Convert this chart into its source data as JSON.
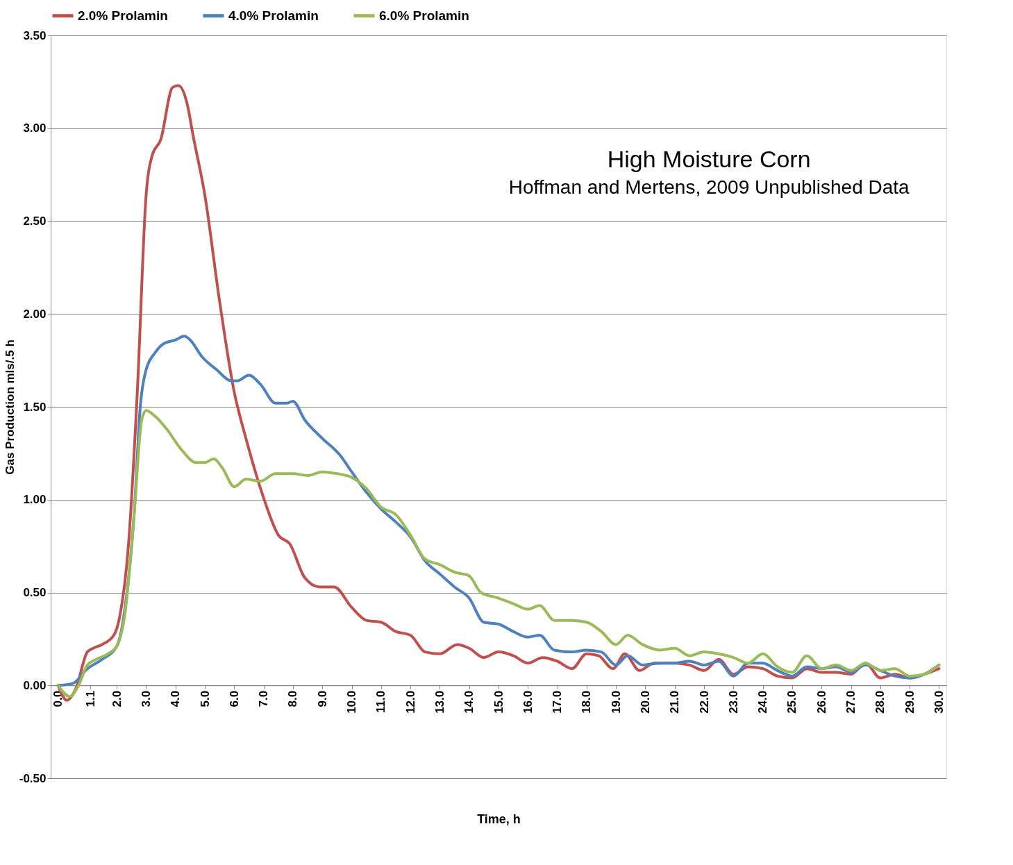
{
  "chart_data": {
    "type": "line",
    "xlabel": "Time, h",
    "ylabel": "Gas Production mls/.5 h",
    "annotations": [
      "High Moisture Corn",
      "Hoffman and Mertens, 2009 Unpublished Data"
    ],
    "xlim": [
      -0.25,
      30.25
    ],
    "xticks": [
      {
        "value": 0,
        "label": "0.0"
      },
      {
        "value": 1.1,
        "label": "1.1"
      },
      {
        "value": 2,
        "label": "2.0"
      },
      {
        "value": 3,
        "label": "3.0"
      },
      {
        "value": 4,
        "label": "4.0"
      },
      {
        "value": 5,
        "label": "5.0"
      },
      {
        "value": 6,
        "label": "6.0"
      },
      {
        "value": 7,
        "label": "7.0"
      },
      {
        "value": 8,
        "label": "8.0"
      },
      {
        "value": 9,
        "label": "9.0"
      },
      {
        "value": 10,
        "label": "10.0"
      },
      {
        "value": 11,
        "label": "11.0"
      },
      {
        "value": 12,
        "label": "12.0"
      },
      {
        "value": 13,
        "label": "13.0"
      },
      {
        "value": 14,
        "label": "14.0"
      },
      {
        "value": 15,
        "label": "15.0"
      },
      {
        "value": 16,
        "label": "16.0"
      },
      {
        "value": 17,
        "label": "17.0"
      },
      {
        "value": 18,
        "label": "18.0"
      },
      {
        "value": 19,
        "label": "19.0"
      },
      {
        "value": 20,
        "label": "20.0"
      },
      {
        "value": 21,
        "label": "21.0"
      },
      {
        "value": 22,
        "label": "22.0"
      },
      {
        "value": 23,
        "label": "23.0"
      },
      {
        "value": 24,
        "label": "24.0"
      },
      {
        "value": 25,
        "label": "25.0"
      },
      {
        "value": 26,
        "label": "26.0"
      },
      {
        "value": 27,
        "label": "27.0"
      },
      {
        "value": 28,
        "label": "28.0"
      },
      {
        "value": 29,
        "label": "29.0"
      },
      {
        "value": 30,
        "label": "30.0"
      }
    ],
    "ylim": [
      -0.5,
      3.5
    ],
    "yticks": [
      {
        "value": -0.5,
        "label": "-0.50"
      },
      {
        "value": 0,
        "label": "0.00"
      },
      {
        "value": 0.5,
        "label": "0.50"
      },
      {
        "value": 1,
        "label": "1.00"
      },
      {
        "value": 1.5,
        "label": "1.50"
      },
      {
        "value": 2,
        "label": "2.00"
      },
      {
        "value": 2.5,
        "label": "2.50"
      },
      {
        "value": 3,
        "label": "3.00"
      },
      {
        "value": 3.5,
        "label": "3.50"
      }
    ],
    "grid": "y",
    "legend": "top",
    "marker": "none",
    "line_style": "solid",
    "series": [
      {
        "name": "2.0% Prolamin",
        "color": "#c0504d",
        "x": [
          0,
          0.3,
          0.6,
          1.0,
          1.2,
          1.5,
          1.9,
          2.1,
          2.4,
          2.7,
          3.0,
          3.2,
          3.5,
          3.9,
          4.1,
          4.4,
          4.6,
          5.0,
          5.5,
          6.0,
          6.4,
          7.0,
          7.5,
          7.9,
          8.4,
          8.9,
          9.4,
          10.0,
          10.5,
          11.0,
          11.5,
          12.0,
          12.5,
          13.0,
          13.6,
          14.0,
          14.5,
          15.0,
          15.5,
          16.0,
          16.5,
          17.0,
          17.5,
          18.0,
          18.4,
          18.9,
          19.3,
          19.8,
          20.3,
          21.0,
          21.5,
          22.0,
          22.5,
          23.0,
          23.5,
          24.0,
          24.5,
          25.0,
          25.5,
          26.0,
          26.5,
          27.0,
          27.5,
          28.0,
          28.5,
          29.0,
          29.5,
          30.0
        ],
        "values": [
          0,
          -0.08,
          -0.02,
          0.18,
          0.2,
          0.22,
          0.27,
          0.37,
          0.76,
          1.58,
          2.64,
          2.85,
          2.94,
          3.22,
          3.23,
          3.13,
          2.96,
          2.64,
          2.07,
          1.58,
          1.33,
          1.01,
          0.81,
          0.76,
          0.58,
          0.53,
          0.53,
          0.42,
          0.35,
          0.34,
          0.29,
          0.27,
          0.18,
          0.17,
          0.22,
          0.2,
          0.15,
          0.18,
          0.16,
          0.12,
          0.15,
          0.13,
          0.09,
          0.17,
          0.16,
          0.09,
          0.17,
          0.08,
          0.12,
          0.12,
          0.11,
          0.08,
          0.14,
          0.06,
          0.1,
          0.09,
          0.05,
          0.04,
          0.09,
          0.07,
          0.07,
          0.06,
          0.12,
          0.04,
          0.06,
          0.04,
          0.06,
          0.09
        ]
      },
      {
        "name": "4.0% Prolamin",
        "color": "#4f81bd",
        "x": [
          0,
          0.5,
          1.0,
          1.5,
          2.0,
          2.3,
          2.6,
          2.8,
          3.0,
          3.3,
          3.6,
          4.0,
          4.3,
          4.5,
          4.9,
          5.4,
          5.9,
          6.1,
          6.5,
          6.9,
          7.4,
          7.8,
          8.0,
          8.4,
          9.0,
          9.6,
          10.0,
          10.5,
          11.0,
          11.5,
          12.0,
          12.5,
          13.0,
          13.5,
          14.0,
          14.5,
          15.0,
          15.5,
          16.0,
          16.4,
          16.9,
          17.5,
          18.0,
          18.5,
          19.0,
          19.4,
          19.9,
          20.5,
          21.0,
          21.5,
          22.0,
          22.5,
          23.0,
          23.5,
          24.0,
          24.5,
          25.0,
          25.5,
          26.0,
          26.5,
          27.0,
          27.5,
          28.0,
          28.5,
          29.0,
          29.5,
          30.0
        ],
        "values": [
          0,
          0.01,
          0.09,
          0.14,
          0.21,
          0.44,
          0.94,
          1.5,
          1.7,
          1.79,
          1.84,
          1.86,
          1.88,
          1.86,
          1.77,
          1.7,
          1.64,
          1.64,
          1.67,
          1.62,
          1.52,
          1.52,
          1.53,
          1.43,
          1.33,
          1.24,
          1.15,
          1.04,
          0.95,
          0.88,
          0.8,
          0.67,
          0.6,
          0.53,
          0.47,
          0.34,
          0.33,
          0.29,
          0.26,
          0.27,
          0.19,
          0.18,
          0.19,
          0.18,
          0.11,
          0.16,
          0.11,
          0.12,
          0.12,
          0.13,
          0.11,
          0.13,
          0.05,
          0.12,
          0.12,
          0.08,
          0.05,
          0.1,
          0.09,
          0.1,
          0.07,
          0.11,
          0.08,
          0.05,
          0.04,
          0.06,
          0.11
        ]
      },
      {
        "name": "6.0% Prolamin",
        "color": "#9bbb59",
        "x": [
          0,
          0.4,
          0.7,
          1.0,
          1.3,
          1.7,
          2.0,
          2.3,
          2.6,
          2.85,
          3.0,
          3.3,
          3.7,
          4.2,
          4.7,
          5.0,
          5.3,
          5.6,
          6.0,
          6.4,
          6.9,
          7.4,
          8.0,
          8.5,
          9.0,
          9.5,
          10.0,
          10.5,
          11.0,
          11.5,
          12.0,
          12.5,
          13.0,
          13.5,
          14.0,
          14.4,
          15.0,
          15.5,
          16.0,
          16.4,
          16.9,
          17.5,
          18.0,
          18.5,
          19.0,
          19.4,
          19.9,
          20.5,
          21.0,
          21.5,
          22.0,
          22.5,
          23.0,
          23.5,
          24.0,
          24.5,
          25.0,
          25.5,
          26.0,
          26.5,
          27.0,
          27.5,
          28.0,
          28.5,
          29.0,
          29.5,
          30.0
        ],
        "values": [
          0,
          -0.06,
          0,
          0.11,
          0.14,
          0.17,
          0.21,
          0.41,
          0.94,
          1.43,
          1.48,
          1.45,
          1.38,
          1.27,
          1.2,
          1.2,
          1.22,
          1.17,
          1.07,
          1.11,
          1.1,
          1.14,
          1.14,
          1.13,
          1.15,
          1.14,
          1.12,
          1.06,
          0.96,
          0.92,
          0.81,
          0.68,
          0.65,
          0.61,
          0.59,
          0.5,
          0.47,
          0.44,
          0.41,
          0.43,
          0.35,
          0.35,
          0.34,
          0.29,
          0.22,
          0.27,
          0.22,
          0.19,
          0.2,
          0.16,
          0.18,
          0.17,
          0.15,
          0.12,
          0.17,
          0.1,
          0.07,
          0.16,
          0.09,
          0.11,
          0.08,
          0.12,
          0.08,
          0.09,
          0.05,
          0.06,
          0.11
        ]
      }
    ]
  }
}
